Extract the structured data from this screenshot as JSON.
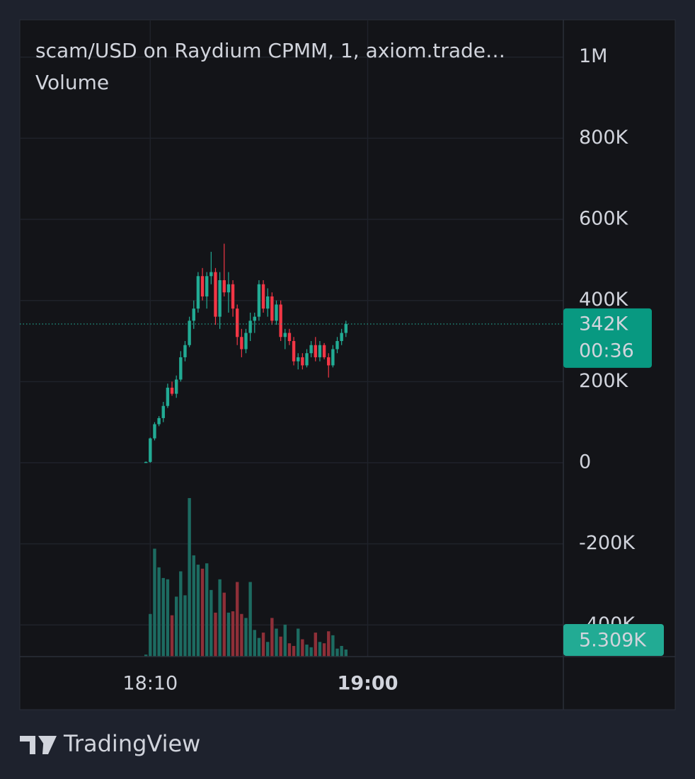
{
  "chart_data": {
    "type": "candlestick",
    "title": "scam/USD on Raydium CPMM, 1, axiom.trade…",
    "subtitle": "Volume",
    "x": [
      "18:09",
      "18:10",
      "18:11",
      "18:12",
      "18:13",
      "18:14",
      "18:15",
      "18:16",
      "18:17",
      "18:18",
      "18:19",
      "18:20",
      "18:21",
      "18:22",
      "18:23",
      "18:24",
      "18:25",
      "18:26",
      "18:27",
      "18:28",
      "18:29",
      "18:30",
      "18:31",
      "18:32",
      "18:33",
      "18:34",
      "18:35",
      "18:36",
      "18:37",
      "18:38",
      "18:39",
      "18:40",
      "18:41",
      "18:42",
      "18:43",
      "18:44",
      "18:45",
      "18:46",
      "18:47",
      "18:48",
      "18:49",
      "18:50",
      "18:51",
      "18:52",
      "18:53",
      "18:54",
      "18:55"
    ],
    "open": [
      0,
      2000,
      60000,
      95000,
      110000,
      140000,
      185000,
      170000,
      205000,
      260000,
      290000,
      350000,
      380000,
      460000,
      410000,
      460000,
      470000,
      360000,
      450000,
      420000,
      440000,
      380000,
      310000,
      280000,
      320000,
      350000,
      360000,
      440000,
      380000,
      410000,
      350000,
      390000,
      310000,
      320000,
      300000,
      250000,
      260000,
      240000,
      270000,
      290000,
      260000,
      290000,
      260000,
      240000,
      280000,
      300000,
      320000
    ],
    "high": [
      3000,
      62000,
      100000,
      115000,
      150000,
      195000,
      200000,
      215000,
      275000,
      300000,
      360000,
      400000,
      470000,
      480000,
      470000,
      520000,
      480000,
      470000,
      540000,
      470000,
      450000,
      390000,
      330000,
      330000,
      370000,
      370000,
      450000,
      450000,
      430000,
      420000,
      400000,
      400000,
      330000,
      330000,
      310000,
      270000,
      270000,
      280000,
      300000,
      310000,
      300000,
      295000,
      270000,
      290000,
      310000,
      330000,
      350000
    ],
    "low": [
      0,
      0,
      55000,
      90000,
      100000,
      135000,
      165000,
      160000,
      200000,
      250000,
      285000,
      330000,
      370000,
      400000,
      380000,
      440000,
      340000,
      330000,
      410000,
      370000,
      360000,
      290000,
      260000,
      270000,
      300000,
      320000,
      350000,
      370000,
      360000,
      340000,
      340000,
      300000,
      280000,
      290000,
      240000,
      230000,
      230000,
      235000,
      260000,
      250000,
      250000,
      255000,
      210000,
      235000,
      270000,
      290000,
      310000
    ],
    "close": [
      2000,
      60000,
      95000,
      110000,
      140000,
      185000,
      170000,
      205000,
      260000,
      290000,
      350000,
      380000,
      460000,
      410000,
      460000,
      470000,
      360000,
      450000,
      420000,
      440000,
      380000,
      310000,
      280000,
      320000,
      350000,
      360000,
      440000,
      380000,
      410000,
      350000,
      390000,
      310000,
      320000,
      300000,
      250000,
      260000,
      240000,
      270000,
      290000,
      260000,
      290000,
      260000,
      240000,
      280000,
      300000,
      320000,
      342000
    ],
    "volume": [
      1500,
      32000,
      81000,
      67000,
      59000,
      58000,
      31000,
      45000,
      64000,
      46000,
      119000,
      76000,
      69000,
      66000,
      70000,
      50000,
      33000,
      58000,
      48000,
      33000,
      34000,
      56000,
      32000,
      29000,
      56000,
      20000,
      14000,
      18000,
      11000,
      29000,
      21000,
      15000,
      24000,
      10000,
      8000,
      21000,
      13000,
      9000,
      7000,
      18000,
      11000,
      10000,
      19000,
      16000,
      6000,
      8000,
      5309
    ],
    "up_color": "#22ab94",
    "down_color": "#f23645",
    "volume_up_color": "#1d6b61",
    "volume_down_color": "#8e2f38",
    "ylim": [
      -478000,
      1092000
    ],
    "yticks": [
      {
        "value": -400000,
        "label": "-400K"
      },
      {
        "value": -200000,
        "label": "-200K"
      },
      0,
      {
        "value": 200000,
        "label": "200K"
      },
      {
        "value": 400000,
        "label": "400K"
      },
      {
        "value": 600000,
        "label": "600K"
      },
      {
        "value": 800000,
        "label": "800K"
      },
      {
        "value": 1000000,
        "label": "1M"
      }
    ],
    "volume_lim": [
      0,
      478000
    ],
    "xlim": [
      "17:40",
      "19:45"
    ],
    "xticks": [
      "18:10",
      "19:00"
    ],
    "grid": true,
    "last_price_label": "342K",
    "countdown": "00:36",
    "last_volume_label": "5.309K"
  },
  "footer": {
    "brand": "TradingView"
  }
}
